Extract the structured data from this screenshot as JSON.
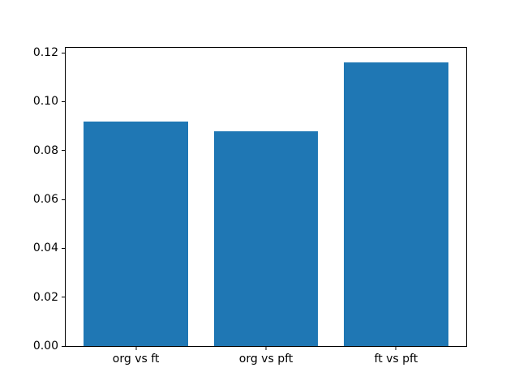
{
  "chart_data": {
    "type": "bar",
    "categories": [
      "org vs ft",
      "org vs pft",
      "ft vs pft"
    ],
    "values": [
      0.092,
      0.088,
      0.116
    ],
    "title": "",
    "xlabel": "",
    "ylabel": "",
    "ylim": [
      0,
      0.122
    ],
    "xlim": [
      -0.54,
      2.54
    ],
    "bar_width": 0.8,
    "yticks": [
      0.0,
      0.02,
      0.04,
      0.06,
      0.08,
      0.1,
      0.12
    ],
    "ytick_labels": [
      "0.00",
      "0.02",
      "0.04",
      "0.06",
      "0.08",
      "0.10",
      "0.12"
    ],
    "grid": false,
    "legend": "none",
    "bar_color": "#1f77b4",
    "spine_color": "#000000",
    "background_color": "#ffffff"
  }
}
